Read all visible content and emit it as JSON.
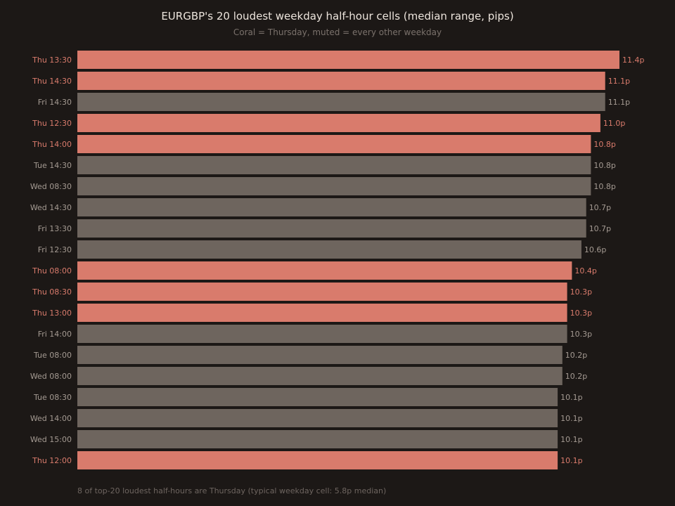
{
  "colors": {
    "background": "#1c1816",
    "highlight": "#d97b6c",
    "muted": "#6e655e",
    "muted_label": "#a49a92",
    "title": "#ece4dc",
    "subtitle": "#7b726c",
    "footnote": "#6e6560"
  },
  "chart_data": {
    "type": "bar",
    "orientation": "horizontal",
    "title": "EURGBP's 20 loudest weekday half-hour cells (median range, pips)",
    "subtitle": "Coral = Thursday, muted = every other weekday",
    "footnote": "8 of top-20 loudest half-hours are Thursday (typical weekday cell: 5.8p median)",
    "value_suffix": "p",
    "xlim": [
      0,
      12
    ],
    "grid": false,
    "categories": [
      "Thu 13:30",
      "Thu 14:30",
      "Fri 14:30",
      "Thu 12:30",
      "Thu 14:00",
      "Tue 14:30",
      "Wed 08:30",
      "Wed 14:30",
      "Fri 13:30",
      "Fri 12:30",
      "Thu 08:00",
      "Thu 08:30",
      "Thu 13:00",
      "Fri 14:00",
      "Tue 08:00",
      "Wed 08:00",
      "Tue 08:30",
      "Wed 14:00",
      "Wed 15:00",
      "Thu 12:00"
    ],
    "values": [
      11.4,
      11.1,
      11.1,
      11.0,
      10.8,
      10.8,
      10.8,
      10.7,
      10.7,
      10.6,
      10.4,
      10.3,
      10.3,
      10.3,
      10.2,
      10.2,
      10.1,
      10.1,
      10.1,
      10.1
    ],
    "value_labels": [
      "11.4p",
      "11.1p",
      "11.1p",
      "11.0p",
      "10.8p",
      "10.8p",
      "10.8p",
      "10.7p",
      "10.7p",
      "10.6p",
      "10.4p",
      "10.3p",
      "10.3p",
      "10.3p",
      "10.2p",
      "10.2p",
      "10.1p",
      "10.1p",
      "10.1p",
      "10.1p"
    ],
    "highlight": [
      true,
      true,
      false,
      true,
      true,
      false,
      false,
      false,
      false,
      false,
      true,
      true,
      true,
      false,
      false,
      false,
      false,
      false,
      false,
      true
    ]
  }
}
